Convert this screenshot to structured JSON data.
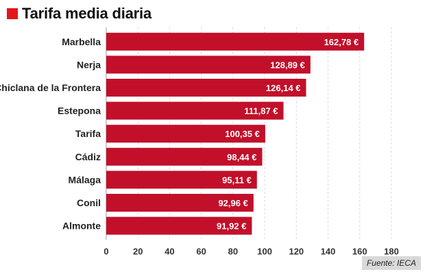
{
  "title": "Tarifa media diaria",
  "source": "Fuente: IECA",
  "colors": {
    "bar": "#c2102a",
    "accent": "#e3161d",
    "grid": "#d9d9d9"
  },
  "chart_data": {
    "type": "bar",
    "orientation": "horizontal",
    "title": "Tarifa media diaria",
    "categories": [
      "Marbella",
      "Nerja",
      "Chiclana de la Frontera",
      "Estepona",
      "Tarifa",
      "Cádiz",
      "Málaga",
      "Conil",
      "Almonte"
    ],
    "values": [
      162.78,
      128.89,
      126.14,
      111.87,
      100.35,
      98.44,
      95.11,
      92.96,
      91.92
    ],
    "value_labels": [
      "162,78 €",
      "128,89 €",
      "126,14 €",
      "111,87 €",
      "100,35 €",
      "98,44 €",
      "95,11 €",
      "92,96 €",
      "91,92 €"
    ],
    "xlim": [
      0,
      180
    ],
    "xticks": [
      0,
      20,
      40,
      60,
      80,
      100,
      120,
      140,
      160,
      180
    ],
    "xlabel": "",
    "ylabel": "",
    "grid": "vertical dashed"
  }
}
